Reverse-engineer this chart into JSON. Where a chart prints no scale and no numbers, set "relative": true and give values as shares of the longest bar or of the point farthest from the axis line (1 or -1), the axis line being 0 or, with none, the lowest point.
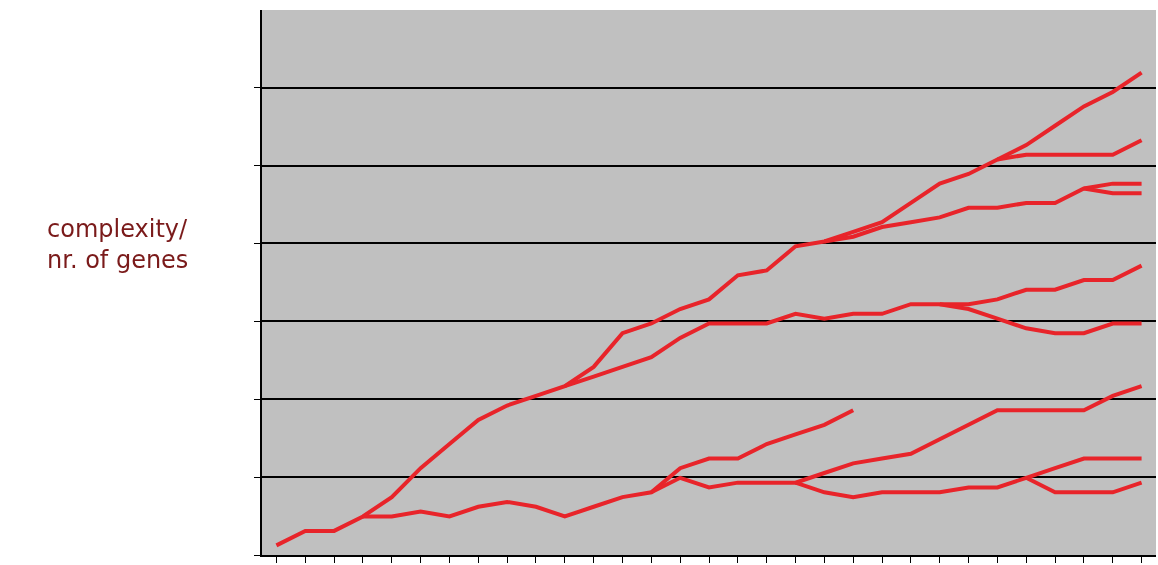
{
  "chart_data": {
    "type": "line",
    "relative": true,
    "ylabel": "complexity/\nnr. of genes",
    "categories": [
      null,
      null,
      null,
      null,
      null,
      null,
      null,
      null,
      null,
      null,
      null,
      null,
      null,
      null,
      null,
      null,
      null,
      null,
      null,
      null,
      null,
      null,
      null,
      null,
      null,
      null,
      null,
      null,
      null,
      null,
      null
    ],
    "series": [
      {
        "color": "#e8242a",
        "values": [
          0.02,
          0.05,
          0.05,
          0.08,
          0.12,
          0.18,
          0.23,
          0.28,
          0.31,
          0.33,
          0.35,
          0.39,
          0.46,
          0.48,
          0.51,
          0.53,
          0.58,
          0.59,
          0.64,
          0.65,
          0.67,
          0.69,
          0.73,
          0.77,
          0.79,
          0.82,
          0.85,
          0.89,
          0.93,
          0.96,
          1.0
        ]
      },
      {
        "color": "#e8242a",
        "values": [
          null,
          null,
          null,
          null,
          null,
          null,
          null,
          null,
          null,
          null,
          null,
          null,
          null,
          null,
          null,
          null,
          null,
          null,
          null,
          null,
          null,
          null,
          null,
          null,
          null,
          0.82,
          0.83,
          0.83,
          0.83,
          0.83,
          0.86
        ]
      },
      {
        "color": "#e8242a",
        "values": [
          null,
          null,
          null,
          null,
          null,
          null,
          null,
          null,
          null,
          null,
          null,
          null,
          null,
          null,
          null,
          null,
          null,
          null,
          null,
          0.65,
          0.66,
          0.68,
          0.69,
          0.7,
          0.72,
          0.72,
          0.73,
          0.73,
          0.76,
          0.77,
          0.77
        ]
      },
      {
        "color": "#e8242a",
        "values": [
          null,
          null,
          null,
          null,
          null,
          null,
          null,
          null,
          null,
          null,
          null,
          null,
          null,
          null,
          null,
          null,
          null,
          null,
          null,
          null,
          null,
          null,
          null,
          null,
          null,
          null,
          null,
          null,
          0.76,
          0.75,
          0.75
        ]
      },
      {
        "color": "#e8242a",
        "values": [
          null,
          null,
          null,
          null,
          null,
          null,
          null,
          null,
          null,
          null,
          0.35,
          0.37,
          0.39,
          0.41,
          0.45,
          0.48,
          0.48,
          0.48,
          0.5,
          0.49,
          0.5,
          0.5,
          0.52,
          0.52,
          0.52,
          0.53,
          0.55,
          0.55,
          0.57,
          0.57,
          0.6
        ]
      },
      {
        "color": "#e8242a",
        "values": [
          null,
          null,
          null,
          null,
          null,
          null,
          null,
          null,
          null,
          null,
          null,
          null,
          null,
          null,
          null,
          null,
          null,
          null,
          null,
          null,
          null,
          null,
          null,
          0.52,
          0.51,
          0.49,
          0.47,
          0.46,
          0.46,
          0.48,
          0.48
        ]
      },
      {
        "color": "#e8242a",
        "values": [
          null,
          null,
          null,
          0.08,
          0.08,
          0.09,
          0.08,
          0.1,
          0.11,
          0.1,
          0.08,
          0.1,
          0.12,
          0.13,
          0.18,
          0.2,
          0.2,
          0.23,
          0.25,
          0.27,
          0.3,
          null,
          null,
          null,
          null,
          null,
          null,
          null,
          null,
          null,
          null
        ]
      },
      {
        "color": "#e8242a",
        "values": [
          null,
          null,
          null,
          null,
          null,
          null,
          null,
          null,
          null,
          null,
          null,
          null,
          null,
          0.13,
          0.16,
          0.14,
          0.15,
          0.15,
          0.15,
          0.17,
          0.19,
          0.2,
          0.21,
          0.24,
          0.27,
          0.3,
          0.3,
          0.3,
          0.3,
          0.33,
          0.35
        ]
      },
      {
        "color": "#e8242a",
        "values": [
          null,
          null,
          null,
          null,
          null,
          null,
          null,
          null,
          null,
          null,
          null,
          null,
          null,
          null,
          null,
          null,
          null,
          null,
          0.15,
          0.13,
          0.12,
          0.13,
          0.13,
          0.13,
          0.14,
          0.14,
          0.16,
          0.18,
          0.2,
          0.2,
          0.2
        ]
      },
      {
        "color": "#e8242a",
        "values": [
          null,
          null,
          null,
          null,
          null,
          null,
          null,
          null,
          null,
          null,
          null,
          null,
          null,
          null,
          null,
          null,
          null,
          null,
          null,
          null,
          null,
          null,
          null,
          null,
          null,
          null,
          0.16,
          0.13,
          0.13,
          0.13,
          0.15
        ]
      }
    ],
    "grid": "y"
  }
}
